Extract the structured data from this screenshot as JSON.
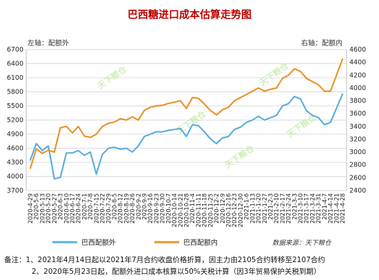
{
  "colors": {
    "background": "#ffffff",
    "title": "#c00000",
    "grid": "#d9d9d9",
    "series_left": "#5aaee0",
    "series_right": "#e8942a",
    "watermark": "#c6e9a8"
  },
  "watermark_text": "天下粮仓",
  "chart_data": {
    "type": "line",
    "title": "巴西糖进口成本估算走势图",
    "left_axis_label": "左轴：配额外",
    "right_axis_label": "右轴：配额内",
    "ylim_left": [
      3700,
      6700
    ],
    "ylim_right": [
      2400,
      4600
    ],
    "yticks_left": [
      "3700",
      "4000",
      "4300",
      "4600",
      "4900",
      "5200",
      "5500",
      "5800",
      "6100",
      "6400",
      "6700"
    ],
    "yticks_right": [
      "2400",
      "2600",
      "2800",
      "3000",
      "3200",
      "3400",
      "3600",
      "3800",
      "4000",
      "4200",
      "4400",
      "4600"
    ],
    "x_tick_labels": [
      "2020-4-29",
      "2020-5-6",
      "2020-5-13",
      "2020-5-20",
      "2020-5-27",
      "2020-6-3",
      "2020-6-10",
      "2020-6-17",
      "2020-6-24",
      "2020-7-1",
      "2020-7-8",
      "2020-7-15",
      "2020-7-22",
      "2020-7-29",
      "2020-8-5",
      "2020-8-12",
      "2020-8-19",
      "2020-8-26",
      "2020-9-2",
      "2020-9-9",
      "2020-9-16",
      "2020-9-23",
      "2020-9-30",
      "2020-10-7",
      "2020-10-14",
      "2020-10-21",
      "2020-10-28",
      "2020-11-4",
      "2020-11-11",
      "2020-11-18",
      "2020-11-25",
      "2020-12-2",
      "2020-12-9",
      "2020-12-16",
      "2020-12-23",
      "2020-12-30",
      "2021-1-6",
      "2021-1-13",
      "2021-1-20",
      "2021-1-27",
      "2021-2-3",
      "2021-2-10",
      "2021-2-17",
      "2021-2-24",
      "2021-3-3",
      "2021-3-10",
      "2021-3-17",
      "2021-3-24",
      "2021-3-31",
      "2021-4-7",
      "2021-4-14",
      "2021-4-21",
      "2021-4-28"
    ],
    "series": [
      {
        "name": "巴西配额外",
        "axis": "left",
        "color": "#5aaee0",
        "values": [
          4350,
          4700,
          4550,
          4650,
          3950,
          3980,
          4500,
          4500,
          4550,
          4450,
          4520,
          4050,
          4470,
          4600,
          4620,
          4580,
          4600,
          4520,
          4650,
          4850,
          4900,
          4950,
          4950,
          4980,
          5000,
          5020,
          4850,
          5100,
          5080,
          4950,
          4800,
          4700,
          4820,
          4850,
          5000,
          5050,
          5150,
          5200,
          5280,
          5200,
          5250,
          5300,
          5500,
          5550,
          5700,
          5650,
          5400,
          5300,
          5250,
          5100,
          5150,
          5450,
          5750
        ]
      },
      {
        "name": "巴西配额内",
        "axis": "right",
        "color": "#e8942a",
        "values": [
          2750,
          3050,
          2980,
          3030,
          3000,
          3380,
          3400,
          3300,
          3400,
          3250,
          3230,
          3280,
          3400,
          3450,
          3470,
          3520,
          3500,
          3550,
          3500,
          3650,
          3700,
          3720,
          3730,
          3760,
          3780,
          3800,
          3680,
          3850,
          3840,
          3750,
          3650,
          3580,
          3660,
          3700,
          3800,
          3850,
          3900,
          3950,
          4000,
          3950,
          3980,
          4000,
          4150,
          4200,
          4300,
          4260,
          4150,
          4100,
          4050,
          3950,
          3950,
          4200,
          4450
        ]
      }
    ],
    "source_note": "数据来源：天下粮仓"
  },
  "notes": {
    "label": "备注：",
    "line1": "1、2021年4月14日起以2021年7月合约收盘价格折算，因主力由2105合约转移至2107合约",
    "line2": "2、2020年5月23日起，配额外进口成本核算以50%关税计算（因3年贸易保护关税到期）"
  }
}
